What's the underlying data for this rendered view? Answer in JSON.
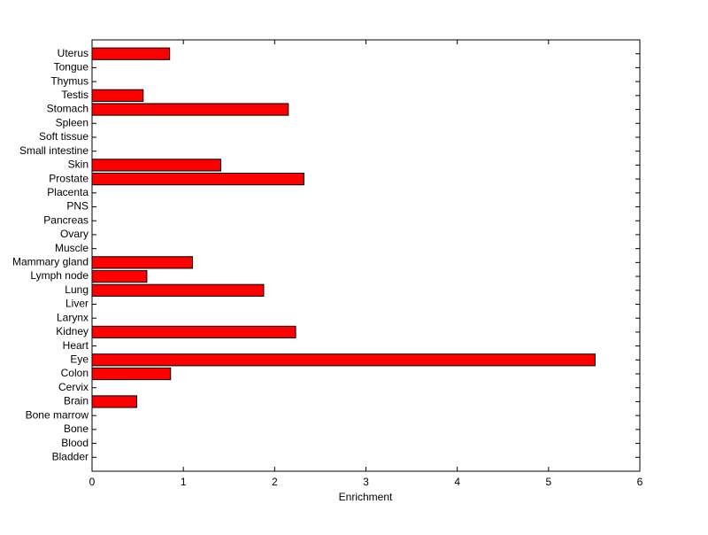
{
  "chart_data": {
    "type": "barh",
    "x_label": "Enrichment",
    "categories": [
      "Bladder",
      "Blood",
      "Bone",
      "Bone marrow",
      "Brain",
      "Cervix",
      "Colon",
      "Eye",
      "Heart",
      "Kidney",
      "Larynx",
      "Liver",
      "Lung",
      "Lymph node",
      "Mammary gland",
      "Muscle",
      "Ovary",
      "Pancreas",
      "PNS",
      "Placenta",
      "Prostate",
      "Skin",
      "Small intestine",
      "Soft tissue",
      "Spleen",
      "Stomach",
      "Testis",
      "Thymus",
      "Tongue",
      "Uterus"
    ],
    "values": [
      0,
      0,
      0,
      0,
      0.49,
      0,
      0.86,
      5.51,
      0,
      2.23,
      0,
      0,
      1.88,
      0.6,
      1.1,
      0,
      0,
      0,
      0,
      0,
      2.32,
      1.41,
      0,
      0,
      0,
      2.15,
      0.56,
      0,
      0,
      0.85
    ],
    "color": "#ff0000",
    "xlim": [
      0,
      6
    ],
    "xticks": [
      0,
      1,
      2,
      3,
      4,
      5,
      6
    ]
  }
}
